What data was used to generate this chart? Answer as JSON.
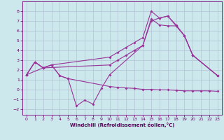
{
  "xlabel": "Windchill (Refroidissement éolien,°C)",
  "bg_color": "#cce8ec",
  "grid_color": "#aabbcc",
  "line_color": "#993399",
  "xlim": [
    -0.5,
    23.5
  ],
  "ylim": [
    -2.6,
    9.0
  ],
  "xticks": [
    0,
    1,
    2,
    3,
    4,
    5,
    6,
    7,
    8,
    9,
    10,
    11,
    12,
    13,
    14,
    15,
    16,
    17,
    18,
    19,
    20,
    21,
    22,
    23
  ],
  "yticks": [
    -2,
    -1,
    0,
    1,
    2,
    3,
    4,
    5,
    6,
    7,
    8
  ],
  "series": [
    {
      "x": [
        0,
        1,
        2,
        3,
        4,
        5,
        6,
        7,
        8,
        9,
        10,
        14,
        15,
        16,
        17,
        18,
        19,
        20,
        23
      ],
      "y": [
        1.5,
        2.8,
        2.2,
        2.5,
        1.4,
        1.1,
        -1.7,
        -1.1,
        -1.5,
        0.1,
        1.5,
        4.5,
        7.0,
        7.3,
        7.5,
        6.6,
        5.5,
        3.5,
        1.4
      ]
    },
    {
      "x": [
        0,
        1,
        2,
        3,
        10,
        11,
        12,
        13,
        14,
        15,
        16,
        17,
        18,
        19,
        20,
        21,
        22,
        23
      ],
      "y": [
        1.5,
        2.8,
        2.2,
        2.5,
        3.3,
        3.8,
        4.3,
        4.8,
        5.3,
        8.0,
        7.3,
        7.5,
        6.5,
        5.5,
        3.5,
        null,
        null,
        1.4
      ]
    },
    {
      "x": [
        0,
        2,
        10,
        11,
        12,
        13,
        14,
        15,
        16,
        17,
        18,
        19,
        20,
        23
      ],
      "y": [
        1.5,
        2.2,
        2.5,
        3.0,
        3.5,
        4.0,
        4.5,
        7.2,
        6.6,
        6.5,
        6.5,
        5.5,
        3.5,
        1.4
      ]
    },
    {
      "x": [
        0,
        1,
        2,
        3,
        4,
        5,
        6,
        7,
        8,
        9,
        10,
        11,
        12,
        13,
        14,
        15,
        16,
        17,
        18,
        19,
        20,
        21,
        22,
        23
      ],
      "y": [
        1.5,
        2.8,
        2.2,
        2.5,
        1.4,
        1.1,
        null,
        null,
        null,
        null,
        0.3,
        0.2,
        0.15,
        0.1,
        0.0,
        0.0,
        -0.05,
        -0.05,
        -0.1,
        -0.15,
        -0.15,
        -0.15,
        -0.15,
        -0.2
      ]
    }
  ]
}
